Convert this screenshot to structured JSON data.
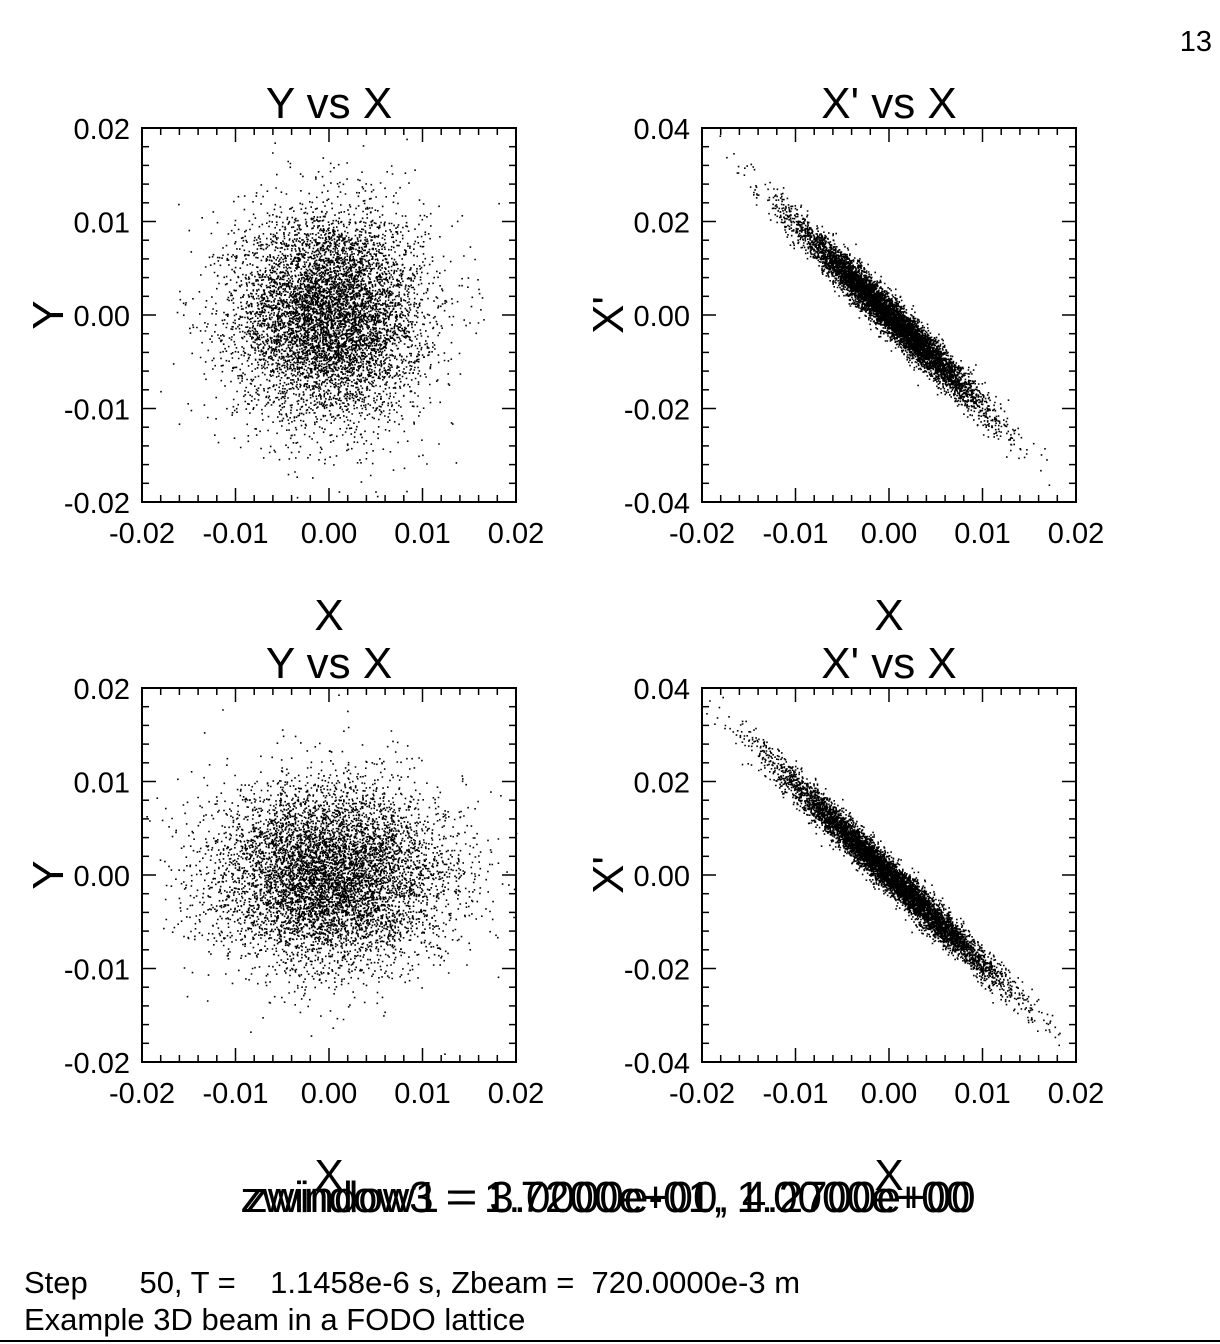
{
  "page_number": "13",
  "overlay_labels": [
    "zwindow3 = 1.7200e+00, 4.2700e+00",
    "zwindow1 = 3.0000e-01, 1.0000e+00"
  ],
  "footer": {
    "step_line": "Step      50, T =    1.1458e-6 s, Zbeam =  720.0000e-3 m",
    "description": "Example 3D beam in a FODO lattice"
  },
  "chart_data": [
    {
      "type": "scatter",
      "title": "Y vs X",
      "xlabel": "X",
      "ylabel": "Y",
      "xlim": [
        -0.02,
        0.02
      ],
      "ylim": [
        -0.02,
        0.02
      ],
      "xticks": [
        "-0.02",
        "-0.01",
        "0.00",
        "0.01",
        "0.02"
      ],
      "yticks": [
        "-0.02",
        "-0.01",
        "0.00",
        "0.01",
        "0.02"
      ],
      "distribution": {
        "center": [
          0.0,
          0.0
        ],
        "sigma": [
          0.005,
          0.0055
        ],
        "correlation": 0.0,
        "count": 7000
      },
      "points": [
        [
          0.0001,
          0.0163
        ],
        [
          -0.0128,
          -0.0025
        ],
        [
          0.0131,
          0.0013
        ]
      ]
    },
    {
      "type": "scatter",
      "title": "X' vs X",
      "xlabel": "X",
      "ylabel": "X'",
      "xlim": [
        -0.02,
        0.02
      ],
      "ylim": [
        -0.04,
        0.04
      ],
      "xticks": [
        "-0.02",
        "-0.01",
        "0.00",
        "0.01",
        "0.02"
      ],
      "yticks": [
        "-0.04",
        "-0.02",
        "0.00",
        "0.02",
        "0.04"
      ],
      "distribution": {
        "center": [
          0.0,
          0.0
        ],
        "sigma": [
          0.0048,
          0.0095
        ],
        "correlation": -0.975,
        "count": 7000
      },
      "points": [
        [
          -0.0128,
          0.0285
        ],
        [
          0.0133,
          -0.0275
        ]
      ]
    },
    {
      "type": "scatter",
      "title": "Y vs X",
      "xlabel": "X",
      "ylabel": "Y",
      "xlim": [
        -0.02,
        0.02
      ],
      "ylim": [
        -0.02,
        0.02
      ],
      "xticks": [
        "-0.02",
        "-0.01",
        "0.00",
        "0.01",
        "0.02"
      ],
      "yticks": [
        "-0.02",
        "-0.01",
        "0.00",
        "0.01",
        "0.02"
      ],
      "distribution": {
        "center": [
          0.0,
          0.0
        ],
        "sigma": [
          0.0062,
          0.0048
        ],
        "correlation": 0.0,
        "count": 7000
      },
      "points": [
        [
          -0.0172,
          0.001
        ],
        [
          0.0035,
          0.014
        ],
        [
          -0.0037,
          -0.0138
        ]
      ]
    },
    {
      "type": "scatter",
      "title": "X' vs X",
      "xlabel": "X",
      "ylabel": "X'",
      "xlim": [
        -0.02,
        0.02
      ],
      "ylim": [
        -0.04,
        0.04
      ],
      "xticks": [
        "-0.02",
        "-0.01",
        "0.00",
        "0.01",
        "0.02"
      ],
      "yticks": [
        "-0.04",
        "-0.02",
        "0.00",
        "0.02",
        "0.04"
      ],
      "distribution": {
        "center": [
          0.0,
          0.0
        ],
        "sigma": [
          0.0058,
          0.0112
        ],
        "correlation": -0.985,
        "count": 7000
      },
      "points": [
        [
          -0.0172,
          0.034
        ],
        [
          0.0155,
          -0.031
        ]
      ]
    }
  ]
}
